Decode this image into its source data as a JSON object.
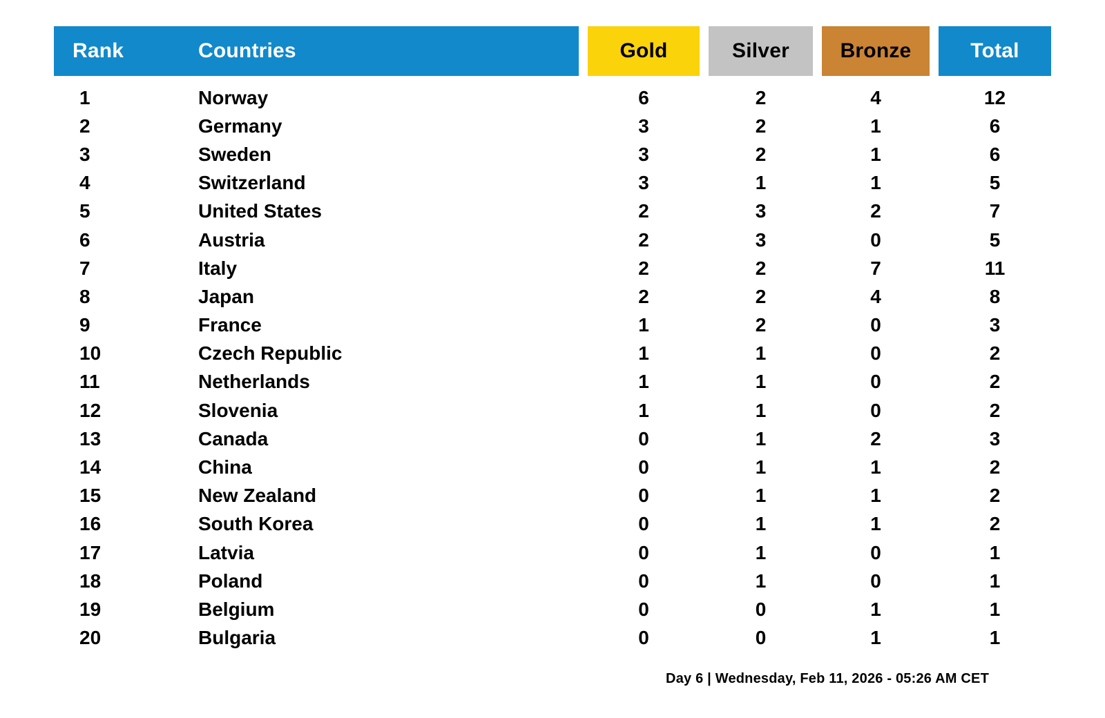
{
  "chart_data": {
    "type": "table",
    "columns": [
      "Rank",
      "Countries",
      "Gold",
      "Silver",
      "Bronze",
      "Total"
    ],
    "rows": [
      {
        "rank": "1",
        "country": "Norway",
        "gold": "6",
        "silver": "2",
        "bronze": "4",
        "total": "12"
      },
      {
        "rank": "2",
        "country": "Germany",
        "gold": "3",
        "silver": "2",
        "bronze": "1",
        "total": "6"
      },
      {
        "rank": "3",
        "country": "Sweden",
        "gold": "3",
        "silver": "2",
        "bronze": "1",
        "total": "6"
      },
      {
        "rank": "4",
        "country": "Switzerland",
        "gold": "3",
        "silver": "1",
        "bronze": "1",
        "total": "5"
      },
      {
        "rank": "5",
        "country": "United States",
        "gold": "2",
        "silver": "3",
        "bronze": "2",
        "total": "7"
      },
      {
        "rank": "6",
        "country": "Austria",
        "gold": "2",
        "silver": "3",
        "bronze": "0",
        "total": "5"
      },
      {
        "rank": "7",
        "country": "Italy",
        "gold": "2",
        "silver": "2",
        "bronze": "7",
        "total": "11"
      },
      {
        "rank": "8",
        "country": "Japan",
        "gold": "2",
        "silver": "2",
        "bronze": "4",
        "total": "8"
      },
      {
        "rank": "9",
        "country": "France",
        "gold": "1",
        "silver": "2",
        "bronze": "0",
        "total": "3"
      },
      {
        "rank": "10",
        "country": "Czech Republic",
        "gold": "1",
        "silver": "1",
        "bronze": "0",
        "total": "2"
      },
      {
        "rank": "11",
        "country": "Netherlands",
        "gold": "1",
        "silver": "1",
        "bronze": "0",
        "total": "2"
      },
      {
        "rank": "12",
        "country": "Slovenia",
        "gold": "1",
        "silver": "1",
        "bronze": "0",
        "total": "2"
      },
      {
        "rank": "13",
        "country": "Canada",
        "gold": "0",
        "silver": "1",
        "bronze": "2",
        "total": "3"
      },
      {
        "rank": "14",
        "country": "China",
        "gold": "0",
        "silver": "1",
        "bronze": "1",
        "total": "2"
      },
      {
        "rank": "15",
        "country": "New Zealand",
        "gold": "0",
        "silver": "1",
        "bronze": "1",
        "total": "2"
      },
      {
        "rank": "16",
        "country": "South Korea",
        "gold": "0",
        "silver": "1",
        "bronze": "1",
        "total": "2"
      },
      {
        "rank": "17",
        "country": "Latvia",
        "gold": "0",
        "silver": "1",
        "bronze": "0",
        "total": "1"
      },
      {
        "rank": "18",
        "country": "Poland",
        "gold": "0",
        "silver": "1",
        "bronze": "0",
        "total": "1"
      },
      {
        "rank": "19",
        "country": "Belgium",
        "gold": "0",
        "silver": "0",
        "bronze": "1",
        "total": "1"
      },
      {
        "rank": "20",
        "country": "Bulgaria",
        "gold": "0",
        "silver": "0",
        "bronze": "1",
        "total": "1"
      }
    ],
    "title": "",
    "layout_hints": {
      "header_style": "colored-blocks",
      "grid": false,
      "numeric_columns_centered": true
    }
  },
  "footer": {
    "text": "Day 6 | Wednesday, Feb 11, 2026 - 05:26 AM CET"
  },
  "colors": {
    "header_blue": "#1189CB",
    "gold": "#FAD30A",
    "silver": "#C3C3C3",
    "bronze": "#CA8434",
    "header_text_on_blue": "#FFFFFF",
    "header_text_on_medal": "#000000",
    "body_text": "#000000",
    "background": "#FFFFFF"
  }
}
